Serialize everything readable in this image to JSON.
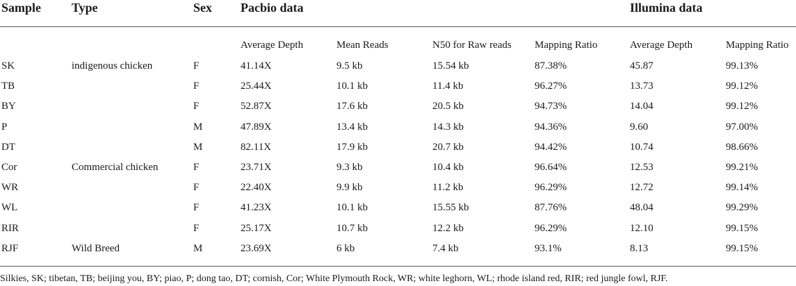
{
  "table": {
    "headers": {
      "sample": "Sample",
      "type": "Type",
      "sex": "Sex",
      "pacbio": "Pacbio data",
      "illumina": "Illumina data"
    },
    "subheaders": [
      "Average Depth",
      "Mean Reads",
      "N50 for Raw reads",
      "Mapping Ratio",
      "Average Depth",
      "Mapping Ratio"
    ],
    "rows": [
      [
        "SK",
        "indigenous chicken",
        "F",
        "41.14X",
        "9.5 kb",
        "15.54 kb",
        "87.38%",
        "45.87",
        "99.13%"
      ],
      [
        "TB",
        "",
        "F",
        "25.44X",
        "10.1 kb",
        "11.4 kb",
        "96.27%",
        "13.73",
        "99.12%"
      ],
      [
        "BY",
        "",
        "F",
        "52.87X",
        "17.6 kb",
        "20.5 kb",
        "94.73%",
        "14.04",
        "99.12%"
      ],
      [
        "P",
        "",
        "M",
        "47.89X",
        "13.4 kb",
        "14.3 kb",
        "94.36%",
        "9.60",
        "97.00%"
      ],
      [
        "DT",
        "",
        "M",
        "82.11X",
        "17.9 kb",
        "20.7 kb",
        "94.42%",
        "10.74",
        "98.66%"
      ],
      [
        "Cor",
        "Commercial chicken",
        "F",
        "23.71X",
        "9.3 kb",
        "10.4 kb",
        "96.64%",
        "12.53",
        "99.21%"
      ],
      [
        "WR",
        "",
        "F",
        "22.40X",
        "9.9 kb",
        "11.2 kb",
        "96.29%",
        "12.72",
        "99.14%"
      ],
      [
        "WL",
        "",
        "F",
        "41.23X",
        "10.1 kb",
        "15.55 kb",
        "87.76%",
        "48.04",
        "99.29%"
      ],
      [
        "RIR",
        "",
        "F",
        "25.17X",
        "10.7 kb",
        "12.2 kb",
        "96.29%",
        "12.10",
        "99.15%"
      ],
      [
        "RJF",
        "Wild Breed",
        "M",
        "23.69X",
        "6 kb",
        "7.4 kb",
        "93.1%",
        "8.13",
        "99.15%"
      ]
    ],
    "footnote": "Silkies, SK; tibetan, TB; beijing you, BY; piao, P; dong tao, DT; cornish, Cor; White Plymouth Rock, WR; white leghorn, WL; rhode island red, RIR; red jungle fowl, RJF."
  }
}
